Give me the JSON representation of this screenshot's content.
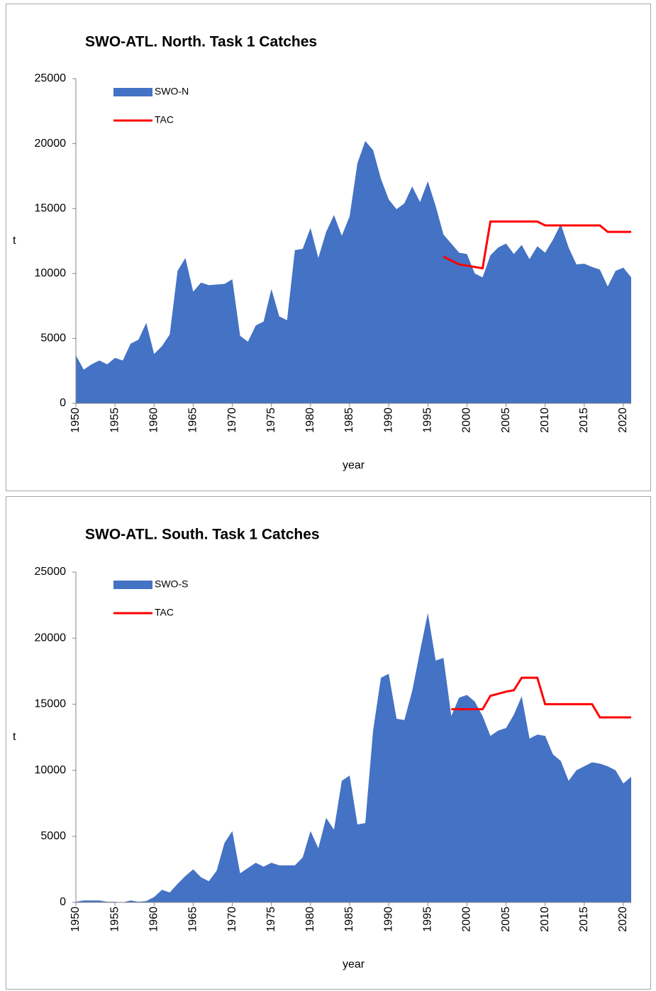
{
  "chart_data": [
    {
      "type": "area",
      "title": "SWO-ATL. North. Task 1 Catches",
      "xlabel": "year",
      "ylabel": "t",
      "x": [
        1950,
        1951,
        1952,
        1953,
        1954,
        1955,
        1956,
        1957,
        1958,
        1959,
        1960,
        1961,
        1962,
        1963,
        1964,
        1965,
        1966,
        1967,
        1968,
        1969,
        1970,
        1971,
        1972,
        1973,
        1974,
        1975,
        1976,
        1977,
        1978,
        1979,
        1980,
        1981,
        1982,
        1983,
        1984,
        1985,
        1986,
        1987,
        1988,
        1989,
        1990,
        1991,
        1992,
        1993,
        1994,
        1995,
        1996,
        1997,
        1998,
        1999,
        2000,
        2001,
        2002,
        2003,
        2004,
        2005,
        2006,
        2007,
        2008,
        2009,
        2010,
        2011,
        2012,
        2013,
        2014,
        2015,
        2016,
        2017,
        2018,
        2019,
        2020,
        2021
      ],
      "xlim": [
        1950,
        2021
      ],
      "xticks": [
        1950,
        1955,
        1960,
        1965,
        1970,
        1975,
        1980,
        1985,
        1990,
        1995,
        2000,
        2005,
        2010,
        2015,
        2020
      ],
      "ylim": [
        0,
        25000
      ],
      "yticks": [
        0,
        5000,
        10000,
        15000,
        20000,
        25000
      ],
      "series": [
        {
          "name": "SWO-N",
          "type": "area",
          "color": "#4472c4",
          "values": [
            3700,
            2600,
            3000,
            3300,
            3000,
            3500,
            3300,
            4600,
            4900,
            6200,
            3800,
            4400,
            5300,
            10200,
            11200,
            8600,
            9300,
            9100,
            9150,
            9200,
            9550,
            5200,
            4750,
            6000,
            6300,
            8800,
            6700,
            6400,
            11800,
            11900,
            13500,
            11200,
            13200,
            14500,
            12900,
            14400,
            18500,
            20200,
            19500,
            17300,
            15700,
            14950,
            15400,
            16700,
            15500,
            17100,
            15200,
            13000,
            12300,
            11600,
            11500,
            10000,
            9700,
            11400,
            12000,
            12300,
            11500,
            12200,
            11100,
            12100,
            11600,
            12600,
            13800,
            12000,
            10700,
            10750,
            10500,
            10300,
            9000,
            10200,
            10450,
            9700
          ]
        },
        {
          "name": "TAC",
          "type": "line",
          "color": "#ff0000",
          "values": [
            null,
            null,
            null,
            null,
            null,
            null,
            null,
            null,
            null,
            null,
            null,
            null,
            null,
            null,
            null,
            null,
            null,
            null,
            null,
            null,
            null,
            null,
            null,
            null,
            null,
            null,
            null,
            null,
            null,
            null,
            null,
            null,
            null,
            null,
            null,
            null,
            null,
            null,
            null,
            null,
            null,
            null,
            null,
            null,
            null,
            null,
            null,
            11300,
            11000,
            10700,
            10600,
            10500,
            10400,
            14000,
            14000,
            14000,
            14000,
            14000,
            14000,
            14000,
            13700,
            13700,
            13700,
            13700,
            13700,
            13700,
            13700,
            13700,
            13200,
            13200,
            13200,
            13200
          ]
        }
      ]
    },
    {
      "type": "area",
      "title": "SWO-ATL. South. Task 1 Catches",
      "xlabel": "year",
      "ylabel": "t",
      "x": [
        1950,
        1951,
        1952,
        1953,
        1954,
        1955,
        1956,
        1957,
        1958,
        1959,
        1960,
        1961,
        1962,
        1963,
        1964,
        1965,
        1966,
        1967,
        1968,
        1969,
        1970,
        1971,
        1972,
        1973,
        1974,
        1975,
        1976,
        1977,
        1978,
        1979,
        1980,
        1981,
        1982,
        1983,
        1984,
        1985,
        1986,
        1987,
        1988,
        1989,
        1990,
        1991,
        1992,
        1993,
        1994,
        1995,
        1996,
        1997,
        1998,
        1999,
        2000,
        2001,
        2002,
        2003,
        2004,
        2005,
        2006,
        2007,
        2008,
        2009,
        2010,
        2011,
        2012,
        2013,
        2014,
        2015,
        2016,
        2017,
        2018,
        2019,
        2020,
        2021
      ],
      "xlim": [
        1950,
        2021
      ],
      "xticks": [
        1950,
        1955,
        1960,
        1965,
        1970,
        1975,
        1980,
        1985,
        1990,
        1995,
        2000,
        2005,
        2010,
        2015,
        2020
      ],
      "ylim": [
        0,
        25000
      ],
      "yticks": [
        0,
        5000,
        10000,
        15000,
        20000,
        25000
      ],
      "series": [
        {
          "name": "SWO-S",
          "type": "area",
          "color": "#4472c4",
          "values": [
            50,
            150,
            150,
            150,
            50,
            50,
            0,
            150,
            50,
            100,
            400,
            950,
            750,
            1400,
            2000,
            2500,
            1900,
            1600,
            2400,
            4500,
            5400,
            2200,
            2600,
            3000,
            2700,
            3000,
            2800,
            2800,
            2800,
            3400,
            5400,
            4100,
            6400,
            5500,
            9200,
            9600,
            5900,
            6000,
            13000,
            17000,
            17300,
            13900,
            13800,
            16000,
            19000,
            21900,
            18300,
            18500,
            14100,
            15500,
            15700,
            15200,
            14100,
            12600,
            13000,
            13200,
            14200,
            15600,
            12400,
            12700,
            12600,
            11200,
            10700,
            9200,
            10000,
            10300,
            10600,
            10500,
            10300,
            10000,
            9000,
            9500
          ]
        },
        {
          "name": "TAC",
          "type": "line",
          "color": "#ff0000",
          "values": [
            null,
            null,
            null,
            null,
            null,
            null,
            null,
            null,
            null,
            null,
            null,
            null,
            null,
            null,
            null,
            null,
            null,
            null,
            null,
            null,
            null,
            null,
            null,
            null,
            null,
            null,
            null,
            null,
            null,
            null,
            null,
            null,
            null,
            null,
            null,
            null,
            null,
            null,
            null,
            null,
            null,
            null,
            null,
            null,
            null,
            null,
            null,
            null,
            14620,
            14620,
            14620,
            14620,
            14620,
            15631,
            15790,
            15949,
            16055,
            17000,
            17000,
            17000,
            15000,
            15000,
            15000,
            15000,
            15000,
            15000,
            15000,
            14000,
            14000,
            14000,
            14000,
            14000
          ]
        }
      ]
    }
  ]
}
